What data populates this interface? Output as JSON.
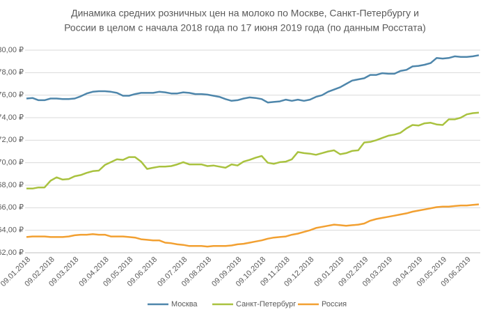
{
  "chart_data": {
    "type": "line",
    "title": [
      "Динамика средних розничных цен на молоко по Москве,  Санкт-Петербургу и",
      "России в целом с начала 2018 года по 17 июня 2019 года (по данным Росстата)"
    ],
    "categories": [
      "09.01.2018",
      null,
      null,
      null,
      "09.02.2018",
      null,
      null,
      null,
      "09.03.2018",
      null,
      null,
      null,
      null,
      "09.04.2018",
      null,
      null,
      null,
      "09.05.2018",
      null,
      null,
      null,
      "09.06.2018",
      null,
      null,
      null,
      null,
      "09.07.2018",
      null,
      null,
      null,
      "09.08.2018",
      null,
      null,
      null,
      null,
      "09.09.2018",
      null,
      null,
      null,
      "09.10.2018",
      null,
      null,
      null,
      "09.11.2018",
      null,
      null,
      null,
      "09.12.2018",
      null,
      null,
      null,
      null,
      "09.01.2019",
      null,
      null,
      null,
      "09.02.2019",
      null,
      null,
      null,
      "09.03.2019",
      null,
      null,
      null,
      null,
      "09.04.2019",
      null,
      null,
      null,
      "09.05.2019",
      null,
      null,
      null,
      "09.06.2019",
      null,
      null
    ],
    "series": [
      {
        "name": "Москва",
        "color": "#4e86ab",
        "values": [
          75.7,
          75.75,
          75.55,
          75.55,
          75.7,
          75.7,
          75.65,
          75.65,
          75.7,
          75.9,
          76.15,
          76.3,
          76.35,
          76.35,
          76.3,
          76.2,
          75.95,
          75.95,
          76.1,
          76.2,
          76.2,
          76.2,
          76.3,
          76.25,
          76.15,
          76.15,
          76.25,
          76.2,
          76.1,
          76.1,
          76.05,
          75.95,
          75.85,
          75.65,
          75.5,
          75.55,
          75.7,
          75.8,
          75.75,
          75.65,
          75.35,
          75.4,
          75.45,
          75.6,
          75.5,
          75.6,
          75.5,
          75.6,
          75.85,
          76.0,
          76.3,
          76.5,
          76.7,
          77.0,
          77.3,
          77.4,
          77.5,
          77.8,
          77.8,
          77.95,
          77.9,
          77.9,
          78.15,
          78.25,
          78.55,
          78.6,
          78.7,
          78.85,
          79.3,
          79.25,
          79.3,
          79.45,
          79.4,
          79.4,
          79.45,
          79.55
        ]
      },
      {
        "name": "Санкт-Петербург",
        "color": "#a9c23f",
        "values": [
          67.7,
          67.7,
          67.8,
          67.8,
          68.4,
          68.7,
          68.5,
          68.55,
          68.8,
          68.9,
          69.1,
          69.25,
          69.3,
          69.8,
          70.05,
          70.3,
          70.25,
          70.5,
          70.5,
          70.1,
          69.45,
          69.55,
          69.65,
          69.65,
          69.7,
          69.85,
          70.05,
          69.85,
          69.85,
          69.85,
          69.7,
          69.75,
          69.65,
          69.55,
          69.85,
          69.75,
          70.1,
          70.25,
          70.45,
          70.6,
          70.0,
          69.9,
          70.05,
          70.1,
          70.3,
          70.95,
          70.85,
          70.8,
          70.7,
          70.85,
          71.0,
          71.1,
          70.75,
          70.85,
          71.05,
          71.1,
          71.8,
          71.85,
          72.0,
          72.2,
          72.4,
          72.5,
          72.65,
          73.05,
          73.35,
          73.3,
          73.5,
          73.55,
          73.4,
          73.35,
          73.85,
          73.85,
          74.0,
          74.3,
          74.4,
          74.45
        ]
      },
      {
        "name": "Россия",
        "color": "#f2a031",
        "values": [
          63.4,
          63.45,
          63.45,
          63.45,
          63.4,
          63.4,
          63.4,
          63.45,
          63.55,
          63.6,
          63.6,
          63.65,
          63.6,
          63.6,
          63.45,
          63.45,
          63.45,
          63.4,
          63.35,
          63.2,
          63.15,
          63.1,
          63.1,
          62.9,
          62.85,
          62.75,
          62.7,
          62.6,
          62.6,
          62.6,
          62.55,
          62.6,
          62.6,
          62.6,
          62.65,
          62.75,
          62.8,
          62.9,
          63.0,
          63.1,
          63.25,
          63.35,
          63.4,
          63.45,
          63.6,
          63.7,
          63.85,
          64.0,
          64.2,
          64.3,
          64.4,
          64.5,
          64.45,
          64.4,
          64.45,
          64.5,
          64.6,
          64.85,
          65.0,
          65.1,
          65.2,
          65.3,
          65.4,
          65.5,
          65.65,
          65.75,
          65.85,
          65.95,
          66.05,
          66.1,
          66.1,
          66.15,
          66.2,
          66.2,
          66.25,
          66.3
        ]
      }
    ],
    "ylim": [
      62,
      80
    ],
    "yticks": [
      {
        "value": 62,
        "label": "62,00 ₽"
      },
      {
        "value": 64,
        "label": "64,00 ₽"
      },
      {
        "value": 66,
        "label": "66,00 ₽"
      },
      {
        "value": 68,
        "label": "68,00 ₽"
      },
      {
        "value": 70,
        "label": "70,00 ₽"
      },
      {
        "value": 72,
        "label": "72,00 ₽"
      },
      {
        "value": 74,
        "label": "74,00 ₽"
      },
      {
        "value": 76,
        "label": "76,00 ₽"
      },
      {
        "value": 78,
        "label": "78,00 ₽"
      },
      {
        "value": 80,
        "label": "80,00 ₽"
      }
    ],
    "grid": true,
    "legend": "bottom"
  }
}
